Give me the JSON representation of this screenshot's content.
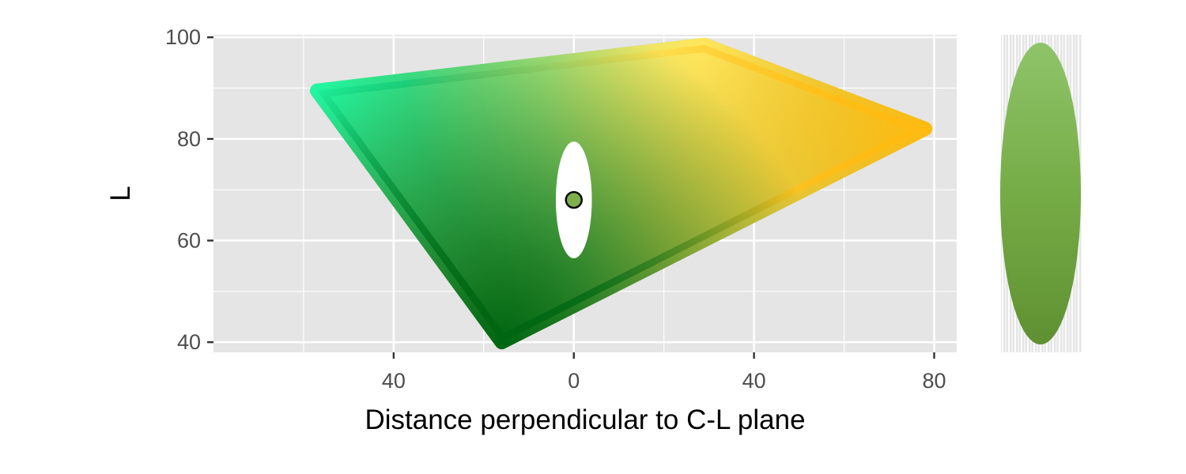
{
  "chart_data": {
    "type": "scatter",
    "title": "",
    "xlabel": "Distance perpendicular to C-L plane",
    "ylabel": "L",
    "xlim": [
      -80,
      85
    ],
    "ylim": [
      38,
      100.5
    ],
    "x_ticks": [
      -40,
      0,
      40,
      80
    ],
    "x_tick_labels": [
      "40",
      "0",
      "40",
      "80"
    ],
    "y_ticks": [
      40,
      60,
      80,
      100
    ],
    "y_tick_labels": [
      "40",
      "60",
      "80",
      "100"
    ],
    "grid": true,
    "legend": "none",
    "gamut_region": {
      "color_scheme": "continuous colour fill from green (low L) to yellow (high L) to orange (right)",
      "vertices": [
        {
          "x": -57,
          "y": 89.5,
          "color": "#22ffaa"
        },
        {
          "x": 29,
          "y": 98.5,
          "color": "#ffff88"
        },
        {
          "x": 78,
          "y": 82,
          "color": "#ffbb11"
        },
        {
          "x": -16,
          "y": 40,
          "color": "#006611"
        }
      ],
      "center_color": "#99bb55"
    },
    "uncertainty_ellipse": {
      "cx": 0,
      "cy": 68,
      "rx": 4,
      "ry": 11.5,
      "color": "#ffffff"
    },
    "point": {
      "x": 0,
      "y": 68,
      "color": "#7fae4d",
      "edge_color": "#000000"
    },
    "side_panel": {
      "description": "colour strip of the ellipse",
      "top_color": "#8fc46a",
      "mid_color": "#76ac46",
      "bottom_color": "#5f9032"
    }
  }
}
